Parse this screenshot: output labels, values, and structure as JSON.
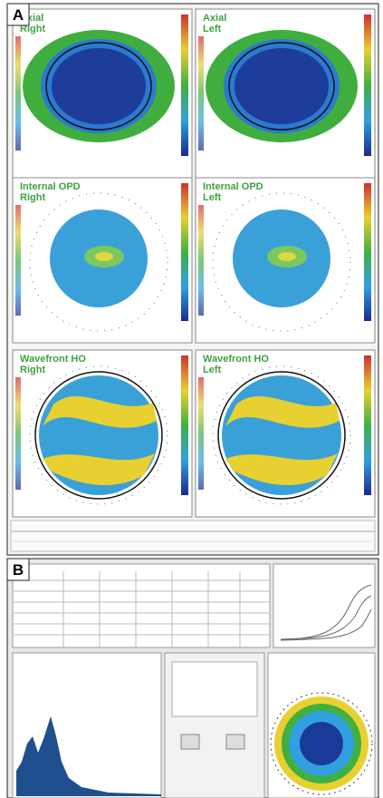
{
  "panel_a": {
    "label": "A",
    "maps": [
      {
        "title": "Axial",
        "eye": "Right"
      },
      {
        "title": "Axial",
        "eye": "Left"
      },
      {
        "title": "Internal OPD",
        "eye": "Right"
      },
      {
        "title": "Internal OPD",
        "eye": "Left"
      },
      {
        "title": "Wavefront HO",
        "eye": "Right"
      },
      {
        "title": "Wavefront HO",
        "eye": "Left"
      }
    ]
  },
  "panel_b": {
    "label": "B"
  }
}
